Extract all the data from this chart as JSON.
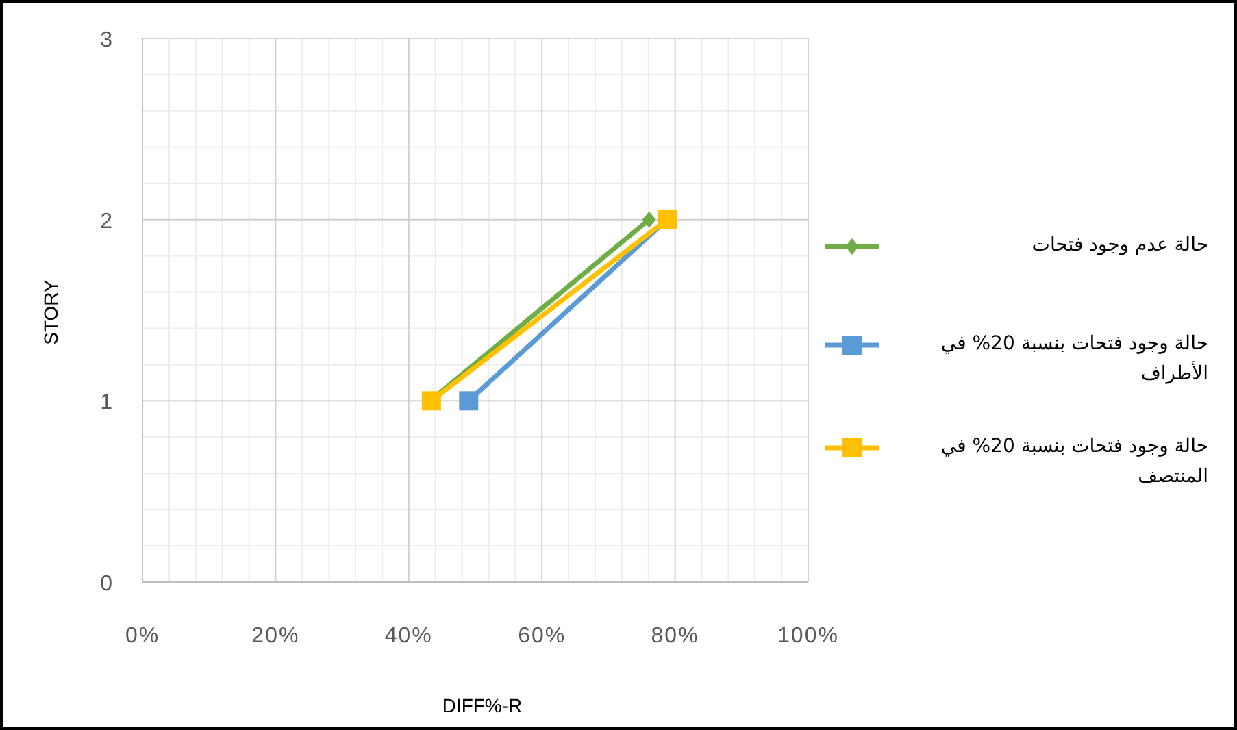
{
  "chart_data": {
    "type": "line",
    "xlabel": "DIFF%-R",
    "ylabel": "STORY",
    "xlim": [
      0,
      100
    ],
    "ylim": [
      0,
      3
    ],
    "xticks": [
      {
        "value": 0,
        "label": "0%"
      },
      {
        "value": 20,
        "label": "20%"
      },
      {
        "value": 40,
        "label": "40%"
      },
      {
        "value": 60,
        "label": "60%"
      },
      {
        "value": 80,
        "label": "80%"
      },
      {
        "value": 100,
        "label": "100%"
      }
    ],
    "yticks": [
      0,
      1,
      2,
      3
    ],
    "grid": true,
    "legend": "right",
    "series": [
      {
        "name": "حالة عدم وجود فتحات",
        "color": "#70ad47",
        "marker": "diamond",
        "x": [
          43.2,
          76.1
        ],
        "values": [
          1,
          2
        ]
      },
      {
        "name": "حالة وجود فتحات بنسبة 20% في الأطراف",
        "color": "#5b9bd5",
        "marker": "square",
        "x": [
          49,
          78.8
        ],
        "values": [
          1,
          2
        ]
      },
      {
        "name": "حالة وجود فتحات بنسبة 20% في المنتصف",
        "color": "#ffc000",
        "marker": "square",
        "x": [
          43.4,
          78.8
        ],
        "values": [
          1,
          2
        ]
      }
    ]
  }
}
